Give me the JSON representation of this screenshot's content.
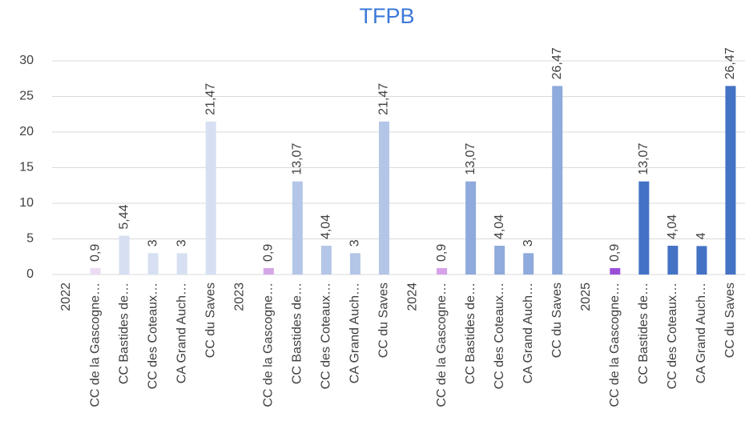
{
  "chart_data": {
    "type": "bar",
    "title": "TFPB",
    "categories": [
      "2022",
      "CC de la Gascogne…",
      "CC Bastides de…",
      "CC des Coteaux…",
      "CA Grand Auch…",
      "CC du Saves",
      "2023",
      "CC de la Gascogne…",
      "CC Bastides de…",
      "CC des Coteaux…",
      "CA Grand Auch…",
      "CC du Saves",
      "2024",
      "CC de la Gascogne…",
      "CC Bastides de…",
      "CC des Coteaux…",
      "CA Grand Auch…",
      "CC du Saves",
      "2025",
      "CC de la Gascogne…",
      "CC Bastides de…",
      "CC des Coteaux…",
      "CA Grand Auch…",
      "CC du Saves"
    ],
    "values": [
      null,
      0.9,
      5.44,
      3,
      3,
      21.47,
      null,
      0.9,
      13.07,
      4.04,
      3,
      21.47,
      null,
      0.9,
      13.07,
      4.04,
      3,
      26.47,
      null,
      0.9,
      13.07,
      4.04,
      4,
      26.47
    ],
    "value_labels": [
      null,
      "0,9",
      "5,44",
      "3",
      "3",
      "21,47",
      null,
      "0,9",
      "13,07",
      "4,04",
      "3",
      "21,47",
      null,
      "0,9",
      "13,07",
      "4,04",
      "3",
      "26,47",
      null,
      "0,9",
      "13,07",
      "4,04",
      "4",
      "26,47"
    ],
    "colors": [
      null,
      "#ecdcf3",
      "#d6e0f2",
      "#d6e0f2",
      "#d6e0f2",
      "#d6e0f2",
      null,
      "#d5a6e6",
      "#b4c6e7",
      "#b4c6e7",
      "#b4c6e7",
      "#b4c6e7",
      null,
      "#d7a1ea",
      "#8faadc",
      "#8faadc",
      "#8faadc",
      "#8faadc",
      null,
      "#9a4fd8",
      "#4472c4",
      "#4472c4",
      "#4472c4",
      "#4472c4"
    ],
    "ylim": [
      0,
      30
    ],
    "yticks": [
      0,
      5,
      10,
      15,
      20,
      25,
      30
    ],
    "grid": true
  }
}
